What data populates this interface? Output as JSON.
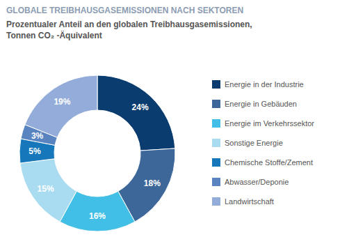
{
  "chart_data": {
    "type": "pie",
    "title": "GLOBALE TREIBHAUSGASEMISSIONEN NACH SEKTOREN",
    "subtitle": "Prozentualer Anteil an den globalen Treibhausgasemissionen,\nTonnen CO₂ -Äquivalent",
    "categories": [
      "Energie in der Industrie",
      "Energie in Gebäuden",
      "Energie im Verkehrssektor",
      "Sonstige Energie",
      "Chemische Stoffe/Zement",
      "Abwasser/Deponie",
      "Landwirtschaft"
    ],
    "values": [
      24,
      18,
      16,
      15,
      5,
      3,
      19
    ],
    "value_labels": [
      "24%",
      "18%",
      "16%",
      "15%",
      "5%",
      "3%",
      "19%"
    ],
    "colors": [
      "#0b3c6f",
      "#3d6799",
      "#42bfe6",
      "#a9dcf1",
      "#1677bb",
      "#5a84bf",
      "#93acd9"
    ],
    "data_labels": true,
    "legend": "right"
  }
}
